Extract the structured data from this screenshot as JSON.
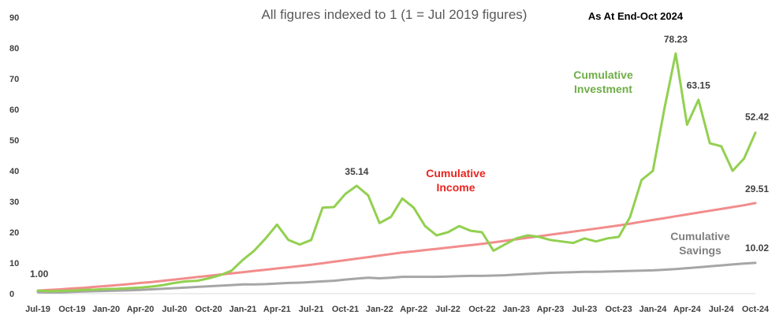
{
  "chart_data": {
    "type": "line",
    "title": "All figures indexed to 1 (1 = Jul 2019 figures)",
    "subtitle": "As At End-Oct 2024",
    "ylim": [
      0,
      90
    ],
    "y_ticks": [
      "0",
      "10",
      "20",
      "30",
      "40",
      "50",
      "60",
      "70",
      "80",
      "90"
    ],
    "x": [
      "Jul-19",
      "Aug-19",
      "Sep-19",
      "Oct-19",
      "Nov-19",
      "Dec-19",
      "Jan-20",
      "Feb-20",
      "Mar-20",
      "Apr-20",
      "May-20",
      "Jun-20",
      "Jul-20",
      "Aug-20",
      "Sep-20",
      "Oct-20",
      "Nov-20",
      "Dec-20",
      "Jan-21",
      "Feb-21",
      "Mar-21",
      "Apr-21",
      "May-21",
      "Jun-21",
      "Jul-21",
      "Aug-21",
      "Sep-21",
      "Oct-21",
      "Nov-21",
      "Dec-21",
      "Jan-22",
      "Feb-22",
      "Mar-22",
      "Apr-22",
      "May-22",
      "Jun-22",
      "Jul-22",
      "Aug-22",
      "Sep-22",
      "Oct-22",
      "Nov-22",
      "Dec-22",
      "Jan-23",
      "Feb-23",
      "Mar-23",
      "Apr-23",
      "May-23",
      "Jun-23",
      "Jul-23",
      "Aug-23",
      "Sep-23",
      "Oct-23",
      "Nov-23",
      "Dec-23",
      "Jan-24",
      "Feb-24",
      "Mar-24",
      "Apr-24",
      "May-24",
      "Jun-24",
      "Jul-24",
      "Aug-24",
      "Sep-24",
      "Oct-24"
    ],
    "x_tick_labels": [
      "Jul-19",
      "Oct-19",
      "Jan-20",
      "Apr-20",
      "Jul-20",
      "Oct-20",
      "Jan-21",
      "Apr-21",
      "Jul-21",
      "Oct-21",
      "Jan-22",
      "Apr-22",
      "Jul-22",
      "Oct-22",
      "Jan-23",
      "Apr-23",
      "Jul-23",
      "Oct-23",
      "Jan-24",
      "Apr-24",
      "Jul-24",
      "Oct-24"
    ],
    "series": [
      {
        "name": "Cumulative Income",
        "label_lines": [
          "Cumulative",
          "Income"
        ],
        "color": "#F28C8C",
        "label_color": "#E8251F",
        "values": [
          1.0,
          1.2,
          1.4,
          1.7,
          1.9,
          2.2,
          2.5,
          2.8,
          3.1,
          3.5,
          3.8,
          4.2,
          4.6,
          5.0,
          5.4,
          5.8,
          6.2,
          6.6,
          7.0,
          7.4,
          7.8,
          8.2,
          8.6,
          9.0,
          9.4,
          9.9,
          10.4,
          10.9,
          11.4,
          11.9,
          12.4,
          12.9,
          13.4,
          13.8,
          14.2,
          14.6,
          15.0,
          15.4,
          15.8,
          16.2,
          16.7,
          17.2,
          17.7,
          18.2,
          18.7,
          19.2,
          19.7,
          20.2,
          20.7,
          21.2,
          21.7,
          22.2,
          22.8,
          23.4,
          24.0,
          24.6,
          25.2,
          25.8,
          26.4,
          27.0,
          27.6,
          28.2,
          28.8,
          29.51
        ]
      },
      {
        "name": "Cumulative Investment",
        "label_lines": [
          "Cumulative",
          "Investment"
        ],
        "color": "#92D050",
        "label_color": "#70AD47",
        "values": [
          1.0,
          0.8,
          0.9,
          1.0,
          1.2,
          1.3,
          1.5,
          1.6,
          1.8,
          2.0,
          2.3,
          2.8,
          3.5,
          4.0,
          4.2,
          5.0,
          6.0,
          7.5,
          11.0,
          14.0,
          18.0,
          22.5,
          17.5,
          16.0,
          17.5,
          28.0,
          28.2,
          32.5,
          35.14,
          32.0,
          23.0,
          25.0,
          31.0,
          28.0,
          22.0,
          19.0,
          20.0,
          22.0,
          20.5,
          20.0,
          14.0,
          16.0,
          18.0,
          19.0,
          18.5,
          17.5,
          17.0,
          16.5,
          18.0,
          17.0,
          18.0,
          18.5,
          25.0,
          37.0,
          40.0,
          60.0,
          78.23,
          55.0,
          63.15,
          49.0,
          48.0,
          40.0,
          44.0,
          52.42
        ]
      },
      {
        "name": "Cumulative Savings",
        "label_lines": [
          "Cumulative",
          "Savings"
        ],
        "color": "#A6A6A6",
        "label_color": "#7F7F7F",
        "values": [
          0.5,
          0.4,
          0.4,
          0.6,
          0.7,
          0.8,
          0.9,
          1.0,
          1.1,
          1.2,
          1.4,
          1.6,
          1.8,
          2.0,
          2.2,
          2.4,
          2.6,
          2.8,
          3.0,
          3.0,
          3.1,
          3.3,
          3.5,
          3.6,
          3.8,
          4.0,
          4.2,
          4.6,
          4.9,
          5.2,
          5.0,
          5.2,
          5.5,
          5.5,
          5.5,
          5.5,
          5.6,
          5.7,
          5.8,
          5.8,
          5.9,
          6.0,
          6.2,
          6.4,
          6.6,
          6.8,
          6.9,
          7.0,
          7.1,
          7.1,
          7.2,
          7.3,
          7.4,
          7.5,
          7.6,
          7.8,
          8.0,
          8.3,
          8.6,
          8.9,
          9.2,
          9.5,
          9.8,
          10.02
        ]
      }
    ],
    "data_labels": [
      {
        "series": 1,
        "index": 0,
        "text": "1.00"
      },
      {
        "series": 1,
        "index": 28,
        "text": "35.14"
      },
      {
        "series": 1,
        "index": 56,
        "text": "78.23"
      },
      {
        "series": 1,
        "index": 58,
        "text": "63.15"
      },
      {
        "series": 1,
        "index": 63,
        "text": "52.42"
      },
      {
        "series": 0,
        "index": 63,
        "text": "29.51"
      },
      {
        "series": 2,
        "index": 63,
        "text": "10.02"
      }
    ],
    "grid": false,
    "legend": "none"
  }
}
